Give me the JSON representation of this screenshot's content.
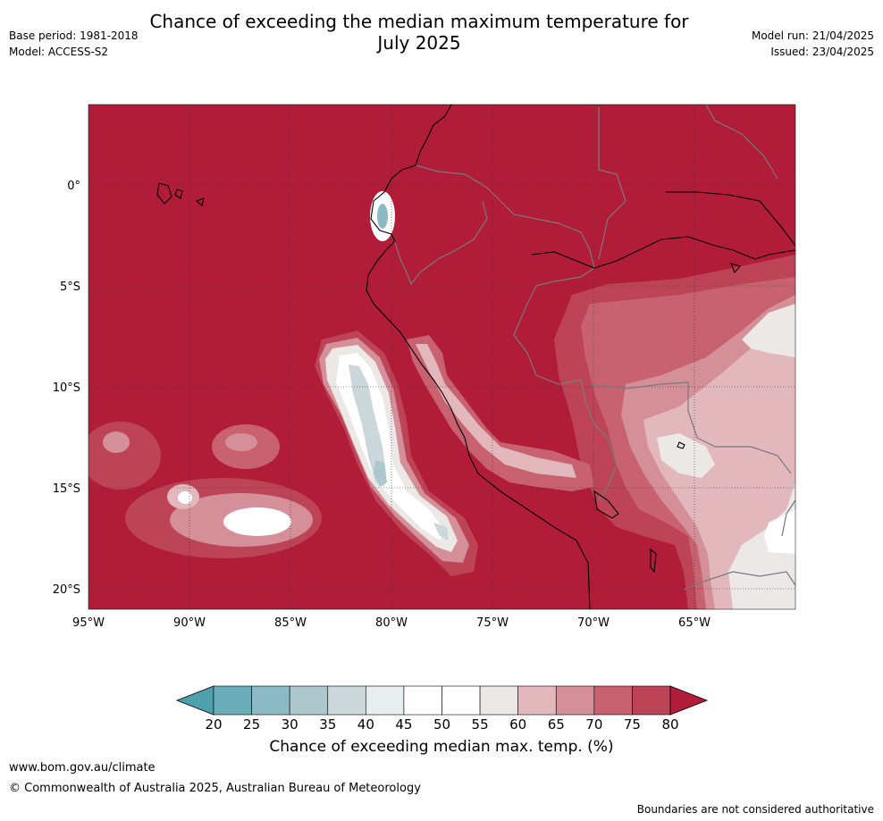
{
  "header": {
    "title_line1": "Chance of exceeding the median maximum temperature for",
    "title_line2": "July 2025",
    "base_period": "Base period: 1981-2018",
    "model": "Model: ACCESS-S2",
    "model_run": "Model run: 21/04/2025",
    "issued": "Issued: 23/04/2025"
  },
  "map": {
    "lat_labels": [
      "0°",
      "5°S",
      "10°S",
      "15°S",
      "20°S"
    ],
    "lon_labels": [
      "95°W",
      "90°W",
      "85°W",
      "80°W",
      "75°W",
      "70°W",
      "65°W"
    ],
    "background_color": "#b11c38"
  },
  "colorbar": {
    "ticks": [
      "20",
      "25",
      "30",
      "35",
      "40",
      "45",
      "50",
      "55",
      "60",
      "65",
      "70",
      "75",
      "80"
    ],
    "colors": [
      "#4ea0ad",
      "#6aacb9",
      "#8bbac4",
      "#adc8cd",
      "#cbd7da",
      "#e8eef0",
      "#ffffff",
      "#ffffff",
      "#ebe8e6",
      "#e2b8bd",
      "#d48f99",
      "#c86170",
      "#bd4456",
      "#b11c38"
    ],
    "label": "Chance of exceeding median max. temp. (%)"
  },
  "footer": {
    "website": "www.bom.gov.au/climate",
    "copyright": "© Commonwealth of Australia 2025, Australian Bureau of Meteorology",
    "disclaimer": "Boundaries are not considered authoritative"
  }
}
